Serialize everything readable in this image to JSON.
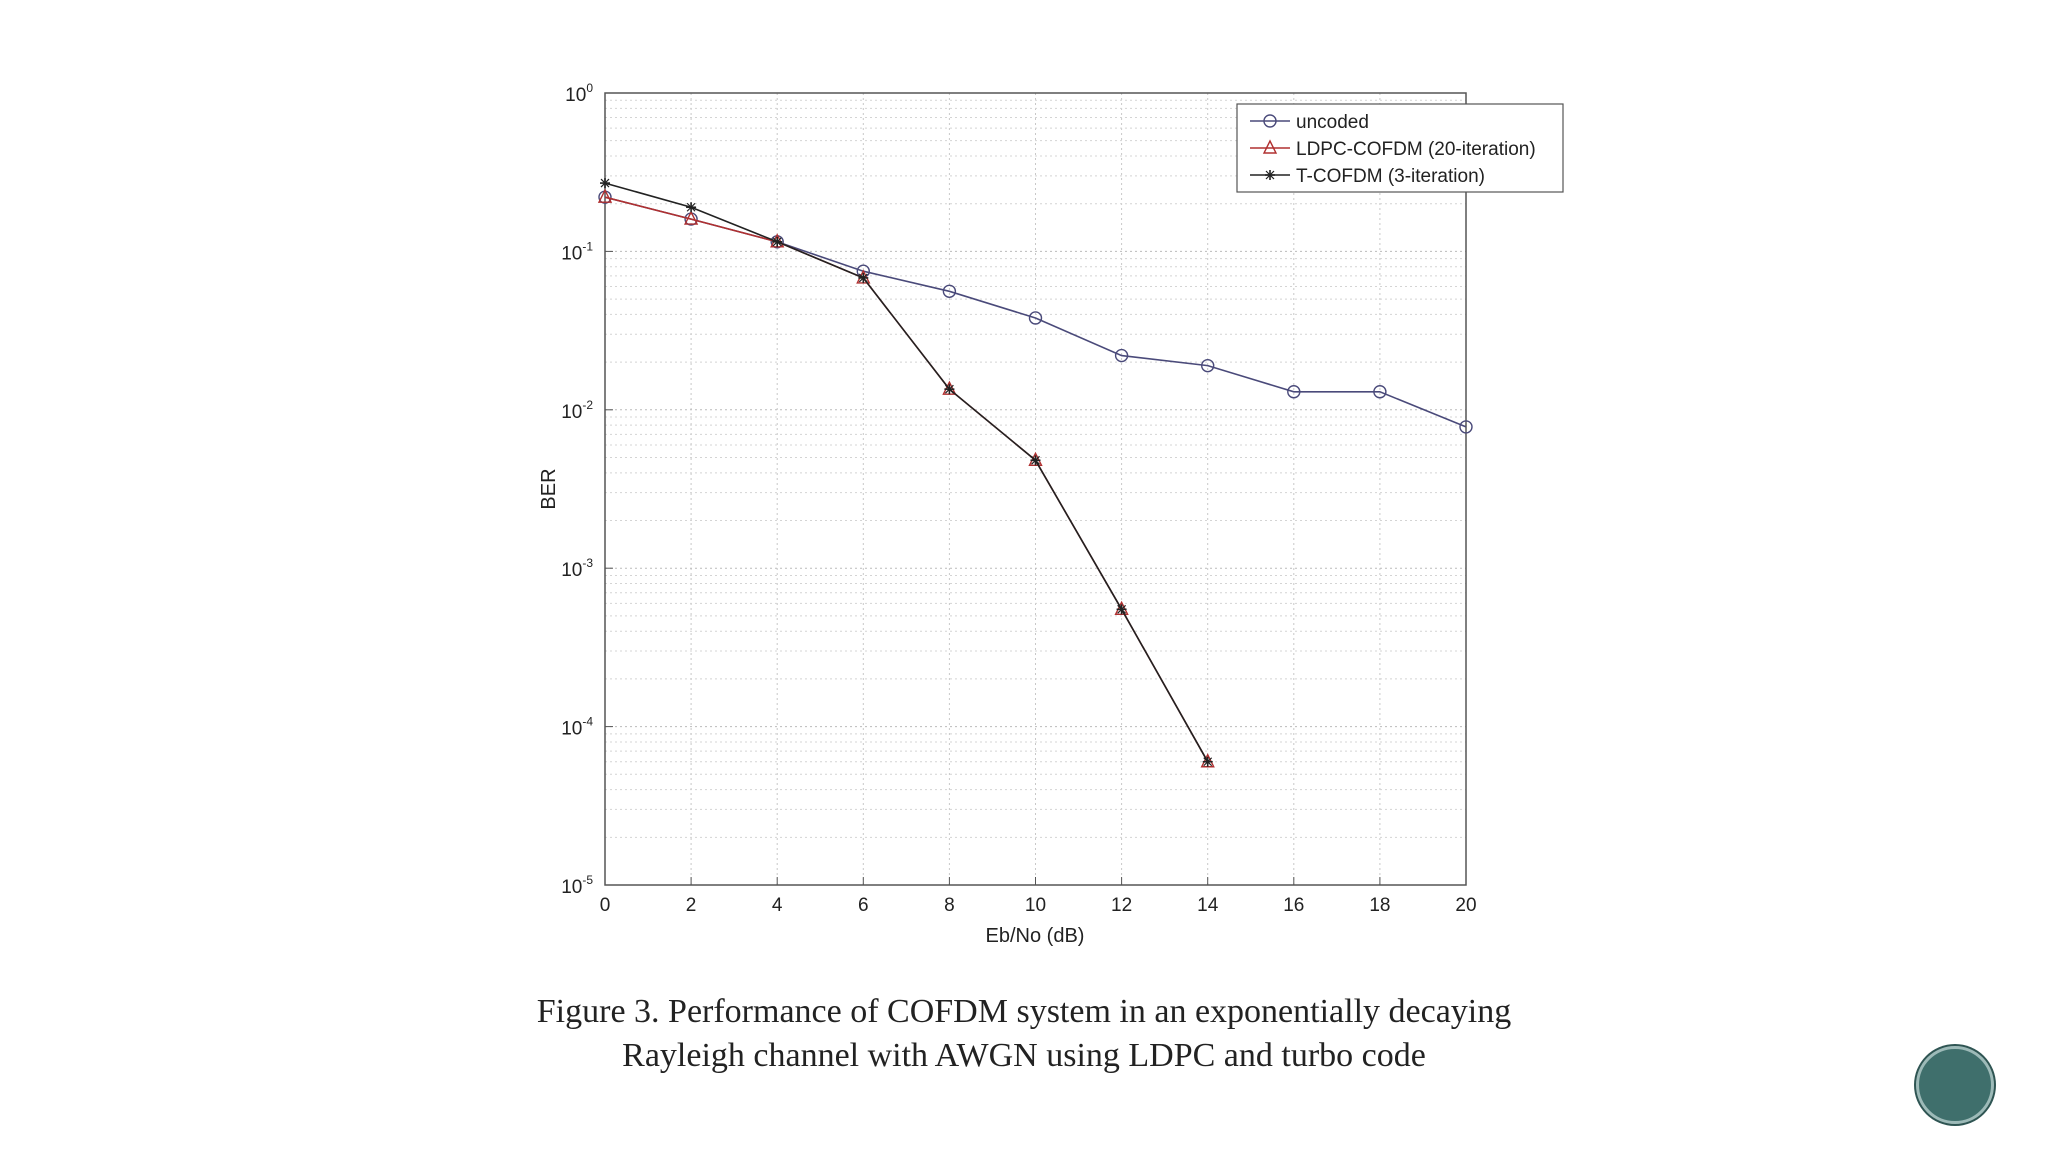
{
  "caption": {
    "line1": "Figure 3. Performance of COFDM system in an exponentially decaying",
    "line2": "Rayleigh channel with AWGN using LDPC and turbo code"
  },
  "chart_data": {
    "type": "line",
    "xlabel": "Eb/No (dB)",
    "ylabel": "BER",
    "xlim": [
      0,
      20
    ],
    "ylim": [
      1e-05,
      1
    ],
    "yscale": "log",
    "grid": true,
    "legend_position": "top-right",
    "x_ticks": [
      "0",
      "2",
      "4",
      "6",
      "8",
      "10",
      "12",
      "14",
      "16",
      "18",
      "20"
    ],
    "y_ticks": [
      {
        "base": "10",
        "exp": "0",
        "value": 1
      },
      {
        "base": "10",
        "exp": "-1",
        "value": 0.1
      },
      {
        "base": "10",
        "exp": "-2",
        "value": 0.01
      },
      {
        "base": "10",
        "exp": "-3",
        "value": 0.001
      },
      {
        "base": "10",
        "exp": "-4",
        "value": 0.0001
      },
      {
        "base": "10",
        "exp": "-5",
        "value": 1e-05
      }
    ],
    "series": [
      {
        "name": "uncoded",
        "color": "#4a4a7a",
        "marker": "circle",
        "x": [
          0,
          2,
          4,
          6,
          8,
          10,
          12,
          14,
          16,
          18,
          20
        ],
        "y": [
          0.22,
          0.16,
          0.115,
          0.075,
          0.056,
          0.038,
          0.022,
          0.019,
          0.013,
          0.013,
          0.0078
        ]
      },
      {
        "name": "LDPC-COFDM (20-iteration)",
        "color": "#b03030",
        "marker": "triangle",
        "x": [
          0,
          2,
          4,
          6,
          8,
          10,
          12,
          14
        ],
        "y": [
          0.22,
          0.16,
          0.115,
          0.068,
          0.0135,
          0.0048,
          0.00055,
          6e-05
        ]
      },
      {
        "name": "T-COFDM (3-iteration)",
        "color": "#222222",
        "marker": "star",
        "x": [
          0,
          2,
          4,
          6,
          8,
          10,
          12,
          14
        ],
        "y": [
          0.27,
          0.19,
          0.115,
          0.068,
          0.0135,
          0.0048,
          0.00055,
          6e-05
        ]
      }
    ]
  }
}
